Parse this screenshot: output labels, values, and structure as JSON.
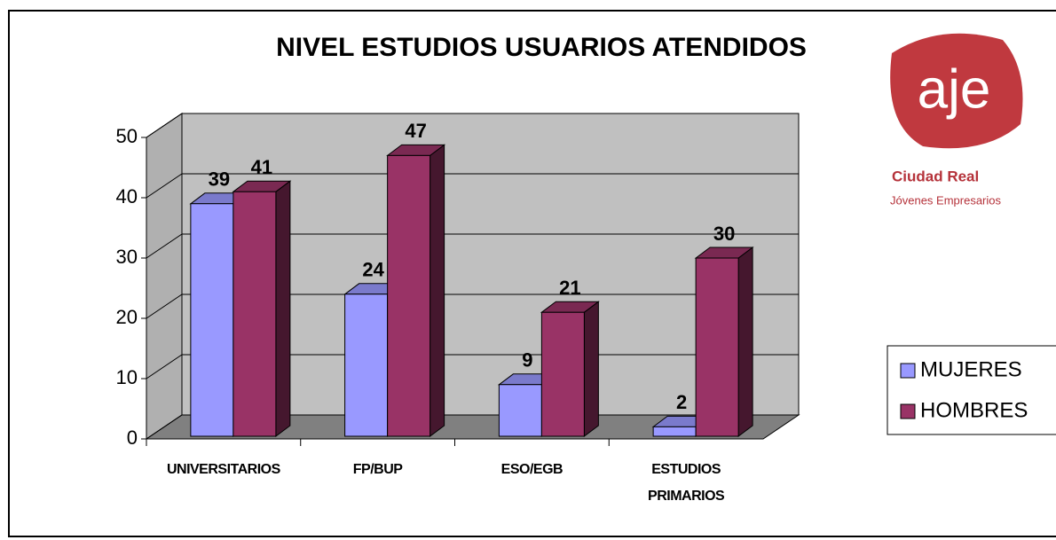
{
  "chart_data": {
    "type": "bar3d",
    "title": "NIVEL ESTUDIOS USUARIOS ATENDIDOS",
    "categories": [
      "UNIVERSITARIOS",
      "FP/BUP",
      "ESO/EGB",
      "ESTUDIOS PRIMARIOS"
    ],
    "series": [
      {
        "name": "MUJERES",
        "color": "#9999ff",
        "values": [
          39,
          24,
          9,
          2
        ]
      },
      {
        "name": "HOMBRES",
        "color": "#993366",
        "values": [
          41,
          47,
          21,
          30
        ]
      }
    ],
    "ylim": [
      0,
      50
    ],
    "yticks": [
      0,
      10,
      20,
      30,
      40,
      50
    ],
    "grid": true,
    "legend": "right"
  },
  "logo": {
    "mark": "aje",
    "line1": "Ciudad Real",
    "line2": "Jóvenes Empresarios"
  }
}
